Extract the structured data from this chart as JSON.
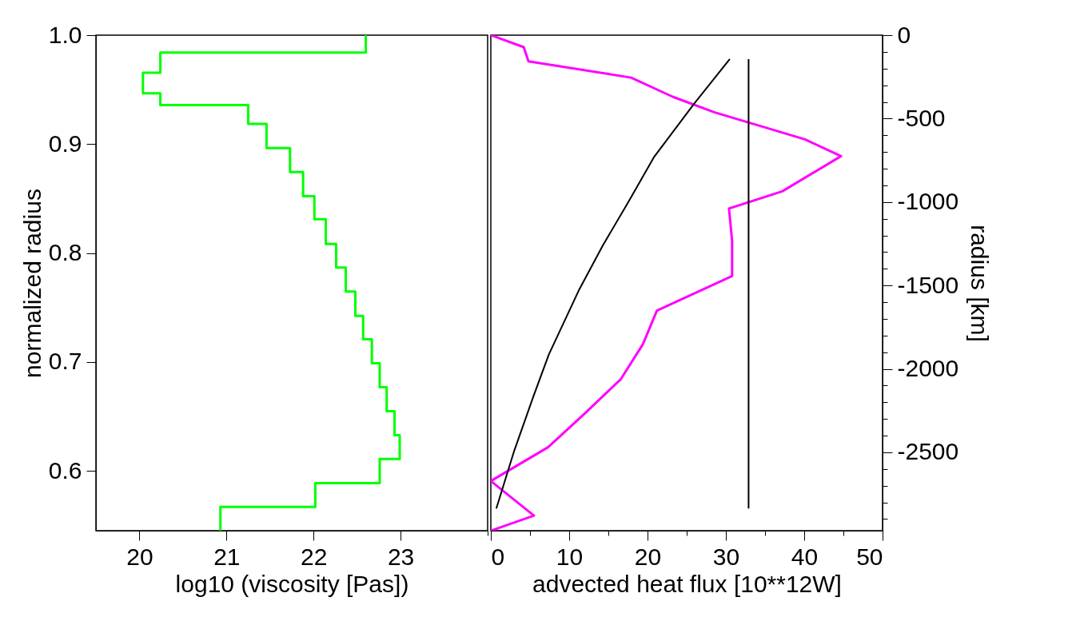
{
  "chart_data": [
    {
      "type": "step",
      "orientation": "horizontal",
      "xlabel": "log10 (viscosity [Pas])",
      "ylabel": "normalized radius",
      "xlim": [
        19.5,
        24
      ],
      "xticks": [
        20,
        21,
        22,
        23,
        {
          "value": 24,
          "label": null
        }
      ],
      "ylim": [
        0.545,
        1.0
      ],
      "yticks": [
        0.6,
        0.7,
        0.8,
        0.9,
        {
          "value": 1.0,
          "label": "1.0"
        }
      ],
      "series": [
        {
          "color": "#00ff00",
          "x": [
            1.0,
            0.984,
            0.9655,
            0.9467,
            0.9357,
            0.9186,
            0.8963,
            0.8743,
            0.8522,
            0.831,
            0.8082,
            0.7867,
            0.7647,
            0.7422,
            0.7207,
            0.6987,
            0.6767,
            0.6547,
            0.6327,
            0.6109,
            0.5887,
            0.5668,
            0.545
          ],
          "values": [
            22.6,
            20.24,
            20.04,
            20.24,
            21.25,
            21.46,
            21.73,
            21.88,
            22.01,
            22.14,
            22.26,
            22.37,
            22.48,
            22.57,
            22.67,
            22.76,
            22.84,
            22.93,
            22.99,
            22.76,
            22.02,
            20.93,
            20.93
          ]
        }
      ]
    },
    {
      "type": "line",
      "orientation": "horizontal",
      "xlabel": "advected heat flux [10**12W]",
      "y2label": "radius [km]",
      "xlim": [
        0,
        50
      ],
      "xticks": [
        0,
        {
          "value": 5,
          "label": null
        },
        10,
        {
          "value": 15,
          "label": null
        },
        20,
        {
          "value": 25,
          "label": null
        },
        30,
        {
          "value": 35,
          "label": null
        },
        40,
        {
          "value": 45,
          "label": null
        },
        50
      ],
      "ylim": [
        0.545,
        1.0
      ],
      "y2lim": [
        -2970,
        0
      ],
      "y2ticks": [
        0,
        {
          "value": -100,
          "label": null
        },
        {
          "value": -200,
          "label": null
        },
        {
          "value": -300,
          "label": null
        },
        {
          "value": -400,
          "label": null
        },
        -500,
        {
          "value": -600,
          "label": null
        },
        {
          "value": -700,
          "label": null
        },
        {
          "value": -800,
          "label": null
        },
        {
          "value": -900,
          "label": null
        },
        -1000,
        {
          "value": -1100,
          "label": null
        },
        {
          "value": -1200,
          "label": null
        },
        {
          "value": -1300,
          "label": null
        },
        {
          "value": -1400,
          "label": null
        },
        -1500,
        {
          "value": -1600,
          "label": null
        },
        {
          "value": -1700,
          "label": null
        },
        {
          "value": -1800,
          "label": null
        },
        {
          "value": -1900,
          "label": null
        },
        -2000,
        {
          "value": -2100,
          "label": null
        },
        {
          "value": -2200,
          "label": null
        },
        {
          "value": -2300,
          "label": null
        },
        {
          "value": -2400,
          "label": null
        },
        -2500,
        {
          "value": -2600,
          "label": null
        },
        {
          "value": -2700,
          "label": null
        },
        {
          "value": -2800,
          "label": null
        },
        {
          "value": -2900,
          "label": null
        }
      ],
      "series": [
        {
          "color": "#ff00ff",
          "x": [
            1.0,
            0.989,
            0.976,
            0.961,
            0.9435,
            0.9293,
            0.9043,
            0.8889,
            0.8566,
            0.8408,
            0.8107,
            0.7789,
            0.7471,
            0.7161,
            0.6842,
            0.6534,
            0.6216,
            0.5906,
            0.5588,
            0.545
          ],
          "values": [
            0,
            4.2,
            4.8,
            17.9,
            23.2,
            28.5,
            40.1,
            44.7,
            37.2,
            30.4,
            30.8,
            30.8,
            21.2,
            19.4,
            16.6,
            12.1,
            7.3,
            0,
            5.5,
            0
          ]
        },
        {
          "color": "#000000",
          "x": [
            0.978,
            0.9366,
            0.8878,
            0.8486,
            0.807,
            0.7667,
            0.7067,
            0.6676,
            0.6187,
            0.5654
          ],
          "values": [
            30.5,
            25.9,
            20.8,
            17.7,
            14.3,
            11.3,
            7.4,
            5.4,
            3.0,
            0.7
          ]
        },
        {
          "color": "#000000",
          "x": [
            0.978,
            0.5654
          ],
          "values": [
            32.9,
            32.9
          ]
        }
      ]
    }
  ]
}
